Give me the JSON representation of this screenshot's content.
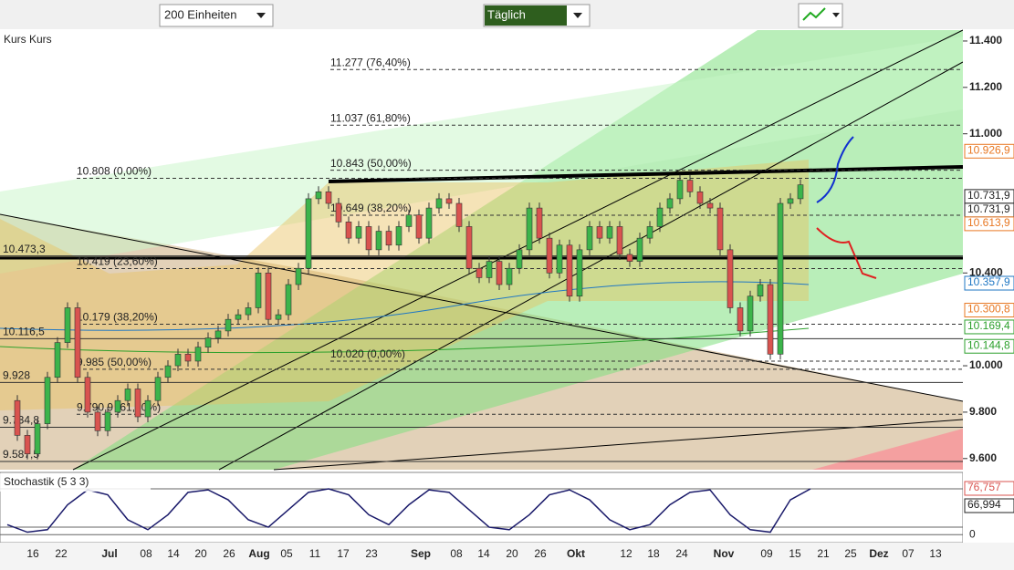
{
  "toolbar": {
    "units": "200 Einheiten",
    "interval": "Täglich"
  },
  "chart_data": [
    {
      "type": "candlestick",
      "title": "Kurs Kurs",
      "closes": [
        9850,
        9700,
        9620,
        9750,
        9950,
        10100,
        10250,
        9950,
        9800,
        9720,
        9800,
        9850,
        9900,
        9780,
        9850,
        9950,
        10000,
        10050,
        10020,
        10080,
        10120,
        10150,
        10200,
        10220,
        10250,
        10400,
        10200,
        10220,
        10350,
        10420,
        10720,
        10750,
        10700,
        10620,
        10550,
        10600,
        10500,
        10580,
        10520,
        10600,
        10650,
        10550,
        10680,
        10720,
        10700,
        10600,
        10420,
        10380,
        10450,
        10350,
        10420,
        10500,
        10680,
        10550,
        10400,
        10520,
        10300,
        10500,
        10600,
        10550,
        10600,
        10480,
        10450,
        10550,
        10600,
        10680,
        10720,
        10800,
        10750,
        10700,
        10680,
        10500,
        10250,
        10150,
        10300,
        10350,
        10050,
        10700,
        10720,
        10780
      ],
      "ylim": [
        9552,
        11447
      ],
      "yticks": [
        {
          "value": 11400,
          "label": "11.400"
        },
        {
          "value": 11200,
          "label": "11.200"
        },
        {
          "value": 11000,
          "label": "11.000"
        },
        {
          "value": 10400,
          "label": "10.400"
        },
        {
          "value": 10000,
          "label": "10.000"
        },
        {
          "value": 9800,
          "label": "9.800"
        },
        {
          "value": 9600,
          "label": "9.600"
        }
      ],
      "levels": [
        {
          "value": 11277,
          "label": "11.277 (76,40%)"
        },
        {
          "value": 11037,
          "label": "11.037 (61,80%)"
        },
        {
          "value": 10843,
          "label": "10.843 (50,00%)"
        },
        {
          "value": 10808,
          "label": "10.808 (0,00%)"
        },
        {
          "value": 10649,
          "label": "10.649 (38,20%)"
        },
        {
          "value": 10419,
          "label": "10.419 (23,60%)"
        },
        {
          "value": 10179,
          "label": "10.179 (38,20%)"
        },
        {
          "value": 10020,
          "label": "10.020 (0,00%)"
        },
        {
          "value": 9985,
          "label": "9.985 (50,00%)"
        },
        {
          "value": 9790.9,
          "label": "9.790,9 (61,80%)"
        }
      ],
      "left_labels": [
        {
          "value": 10473.3,
          "label": "10.473,3"
        },
        {
          "value": 10116.5,
          "label": "10.116,5"
        },
        {
          "value": 9928,
          "label": "9.928"
        },
        {
          "value": 9734.8,
          "label": "9.734,8"
        },
        {
          "value": 9587.5,
          "label": "9.587,5"
        }
      ],
      "price_labels": [
        {
          "value": 10926.9,
          "label": "10.926,9",
          "color": "#e87722"
        },
        {
          "value": 10731.9,
          "label": "10.731,9",
          "color": "#222222"
        },
        {
          "value": 10731.9,
          "label": "10.731,9",
          "color": "#222222"
        },
        {
          "value": 10613.9,
          "label": "10.613,9",
          "color": "#e87722"
        },
        {
          "value": 10357.9,
          "label": "10.357,9",
          "color": "#1f77c4"
        },
        {
          "value": 10300.8,
          "label": "10.300,8",
          "color": "#e87722"
        },
        {
          "value": 10169.4,
          "label": "10.169,4",
          "color": "#2ca02c"
        },
        {
          "value": 10144.8,
          "label": "10.144,8",
          "color": "#2ca02c"
        }
      ],
      "x_labels": [
        "16",
        "22",
        "Jul",
        "08",
        "14",
        "20",
        "26",
        "Aug",
        "05",
        "11",
        "17",
        "23",
        "Sep",
        "08",
        "14",
        "20",
        "26",
        "Okt",
        "12",
        "18",
        "24",
        "Nov",
        "09",
        "15",
        "21",
        "25",
        "Dez",
        "07",
        "13"
      ]
    },
    {
      "type": "line",
      "title": "Stochastik (5 3 3)",
      "values": [
        20,
        5,
        10,
        60,
        90,
        80,
        30,
        10,
        40,
        85,
        90,
        70,
        30,
        15,
        50,
        85,
        92,
        80,
        40,
        20,
        60,
        90,
        85,
        50,
        15,
        10,
        40,
        80,
        90,
        70,
        30,
        10,
        20,
        60,
        85,
        90,
        40,
        10,
        5,
        70,
        92
      ],
      "ylim": [
        -16,
        125
      ],
      "yticks": [
        0
      ],
      "right_labels": [
        {
          "value": 76.757,
          "label": "76,757"
        },
        {
          "value": 66.994,
          "label": "66,994"
        }
      ]
    }
  ]
}
